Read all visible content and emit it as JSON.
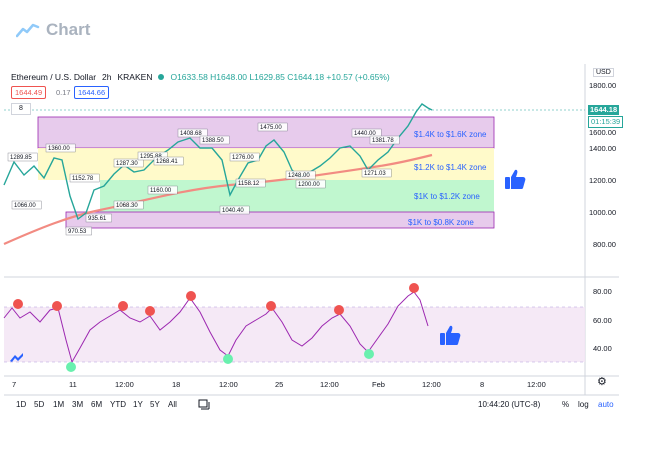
{
  "brand": {
    "title": "Chart",
    "icon": "line-chart-icon"
  },
  "symbol": {
    "name": "Ethereum / U.S. Dollar",
    "interval": "2h",
    "exchange": "KRAKEN",
    "ohlc": "O1633.58 H1648.00 L1629.85 C1644.18 +10.57 (+0.65%)"
  },
  "quote": {
    "sell": "1644.49",
    "spread": "0.17",
    "buy": "1644.66"
  },
  "indicator_toggle": "8",
  "currency": "USD",
  "price_axis": [
    "1800.00",
    "1600.00",
    "1400.00",
    "1200.00",
    "1000.00",
    "800.00"
  ],
  "last_price": "1644.18",
  "countdown": "01:15:39",
  "rsi_axis": [
    "80.00",
    "60.00",
    "40.00"
  ],
  "time_axis": [
    "7",
    "11",
    "12:00",
    "18",
    "12:00",
    "25",
    "12:00",
    "Feb",
    "12:00",
    "8",
    "12:00"
  ],
  "zones": [
    {
      "label": "$1.4K to $1.6K zone",
      "fill": "#e1bee7",
      "text": "#2962ff"
    },
    {
      "label": "$1.2K to $1.4K zone",
      "fill": "#fff9c4",
      "text": "#2962ff"
    },
    {
      "label": "$1K to $1.2K zone",
      "fill": "#b9f6ca",
      "text": "#2962ff"
    },
    {
      "label": "$1K to $0.8K zone",
      "fill": "#e1bee7",
      "text": "#2962ff"
    }
  ],
  "annotations": [
    "1289.85",
    "1360.00",
    "1152.78",
    "1066.00",
    "935.61",
    "970.53",
    "1287.30",
    "1295.88",
    "1268.41",
    "1068.30",
    "1160.00",
    "1408.68",
    "1388.50",
    "1276.00",
    "1158.12",
    "1040.40",
    "1475.00",
    "1248.00",
    "1200.00",
    "1440.00",
    "1381.78",
    "1271.03"
  ],
  "bottom": {
    "ranges": [
      "1D",
      "5D",
      "1M",
      "3M",
      "6M",
      "YTD",
      "1Y",
      "5Y",
      "All"
    ],
    "clock": "10:44:20 (UTC-8)",
    "percent": "%",
    "log": "log",
    "auto": "auto"
  },
  "colors": {
    "up": "#26a69a",
    "down": "#ef5350",
    "ma": "#f28b82",
    "rsi_line": "#9c27b0",
    "rsi_band": "#f3e5f5",
    "thumb": "#2962ff"
  },
  "icons": {
    "thumbs_up": "thumbs-up-icon",
    "settings": "gear-icon",
    "compare": "compare-icon",
    "logo": "tradingview-logo"
  }
}
